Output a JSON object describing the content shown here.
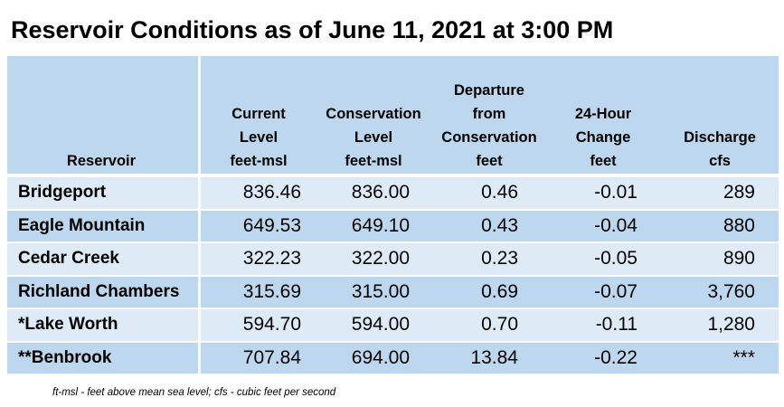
{
  "title": "Reservoir Conditions as of June 11, 2021 at 3:00 PM",
  "headers": {
    "reservoir": [
      "Reservoir"
    ],
    "current": [
      "Current",
      "Level",
      "feet-msl"
    ],
    "conservation": [
      "Conservation",
      "Level",
      "feet-msl"
    ],
    "departure": [
      "Departure",
      "from",
      "Conservation",
      "feet"
    ],
    "change": [
      "24-Hour",
      "Change",
      "feet"
    ],
    "discharge": [
      "Discharge",
      "cfs"
    ]
  },
  "rows": [
    {
      "name": "Bridgeport",
      "current": "836.46",
      "conservation": "836.00",
      "departure": "0.46",
      "change": "-0.01",
      "discharge": "289"
    },
    {
      "name": "Eagle Mountain",
      "current": "649.53",
      "conservation": "649.10",
      "departure": "0.43",
      "change": "-0.04",
      "discharge": "880"
    },
    {
      "name": "Cedar Creek",
      "current": "322.23",
      "conservation": "322.00",
      "departure": "0.23",
      "change": "-0.05",
      "discharge": "890"
    },
    {
      "name": "Richland Chambers",
      "current": "315.69",
      "conservation": "315.00",
      "departure": "0.69",
      "change": "-0.07",
      "discharge": "3,760"
    },
    {
      "name": "*Lake Worth",
      "current": "594.70",
      "conservation": "594.00",
      "departure": "0.70",
      "change": "-0.11",
      "discharge": "1,280"
    },
    {
      "name": "**Benbrook",
      "current": "707.84",
      "conservation": "694.00",
      "departure": "13.84",
      "change": "-0.22",
      "discharge": "***"
    }
  ],
  "footnote": "ft-msl - feet above mean sea level; cfs - cubic feet per second"
}
